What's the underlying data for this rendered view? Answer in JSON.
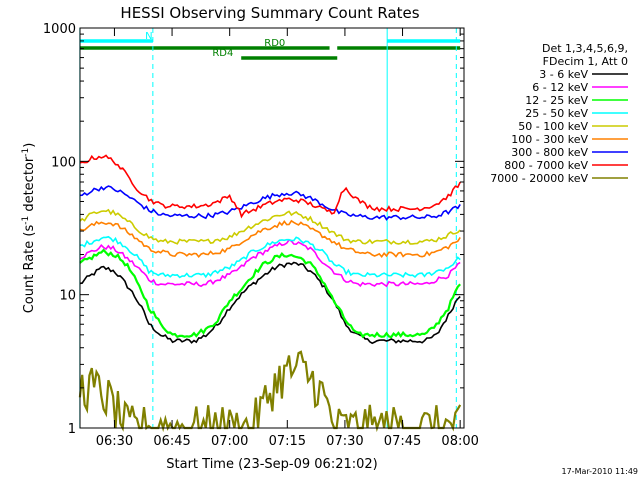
{
  "chart_data": {
    "type": "line",
    "title": "HESSI Observing Summary Count Rates",
    "xlabel": "Start Time (23-Sep-09 06:21:02)",
    "ylabel": "Count Rate (s⁻¹ detector⁻¹)",
    "ylabel_parts": {
      "main": "Count Rate (s",
      "exp1": "-1",
      "mid": " detector",
      "exp2": "-1",
      "end": ")"
    },
    "xlim": [
      "06:21:02",
      "08:01:00"
    ],
    "ylim": [
      1,
      1000
    ],
    "yscale": "log",
    "x_ticks": [
      "06:30",
      "06:45",
      "07:00",
      "07:15",
      "07:30",
      "07:45",
      "08:00"
    ],
    "y_ticks": [
      "1",
      "10",
      "100",
      "1000"
    ],
    "legend_header": [
      "Det 1,3,4,5,6,9,",
      "FDecim 1, Att 0"
    ],
    "legend_position": "right",
    "series_x": [
      "06:21",
      "06:24",
      "06:27",
      "06:30",
      "06:33",
      "06:36",
      "06:39",
      "06:42",
      "06:45",
      "06:48",
      "06:51",
      "06:54",
      "06:57",
      "07:00",
      "07:03",
      "07:06",
      "07:09",
      "07:12",
      "07:15",
      "07:18",
      "07:21",
      "07:24",
      "07:27",
      "07:30",
      "07:33",
      "07:36",
      "07:39",
      "07:42",
      "07:45",
      "07:48",
      "07:51",
      "07:54",
      "07:57",
      "08:00"
    ],
    "series": [
      {
        "name": "3 - 6 keV",
        "color": "#000000",
        "values": [
          12,
          14,
          16,
          15,
          12,
          9,
          6,
          5,
          4.5,
          4.5,
          4.5,
          5,
          6,
          8,
          10,
          12,
          14,
          16,
          17,
          17,
          15,
          12,
          9,
          6,
          5,
          4.5,
          4.5,
          4.5,
          4.5,
          4.5,
          4.5,
          5,
          7,
          10
        ]
      },
      {
        "name": "6 - 12 keV",
        "color": "#ff00ff",
        "values": [
          19,
          21,
          23,
          22,
          19,
          16,
          13,
          12,
          12,
          12,
          12,
          12,
          13,
          14,
          16,
          19,
          21,
          23,
          25,
          24,
          22,
          18,
          15,
          13,
          12,
          12,
          12,
          12,
          12,
          12,
          12,
          13,
          14,
          17
        ]
      },
      {
        "name": "12 - 25 keV",
        "color": "#00ff00",
        "values": [
          17,
          19,
          21,
          20,
          17,
          12,
          8,
          6,
          5,
          5,
          5,
          5.5,
          6.5,
          9,
          11,
          14,
          17,
          19,
          20,
          19,
          17,
          13,
          9,
          6.5,
          5,
          5,
          5,
          5,
          5,
          5,
          5,
          6,
          8,
          12
        ]
      },
      {
        "name": "25 - 50 keV",
        "color": "#00ffff",
        "values": [
          23,
          25,
          27,
          26,
          23,
          19,
          15,
          14,
          14,
          14,
          14,
          14,
          15,
          16,
          18,
          21,
          23,
          25,
          26,
          26,
          24,
          21,
          17,
          15,
          14,
          14,
          14,
          14,
          14,
          14,
          14,
          15,
          16,
          19
        ]
      },
      {
        "name": "50 - 100 keV",
        "color": "#cccc00",
        "values": [
          35,
          40,
          43,
          41,
          36,
          31,
          27,
          25,
          25,
          25,
          25,
          25,
          26,
          27,
          30,
          33,
          36,
          39,
          41,
          40,
          37,
          33,
          29,
          26,
          25,
          25,
          25,
          25,
          25,
          25,
          25,
          26,
          28,
          31
        ]
      },
      {
        "name": "100 - 300 keV",
        "color": "#ff8000",
        "values": [
          30,
          33,
          35,
          34,
          30,
          26,
          22,
          21,
          20,
          20,
          20,
          20,
          21,
          22,
          25,
          28,
          31,
          33,
          35,
          34,
          31,
          28,
          25,
          22,
          21,
          20,
          20,
          20,
          20,
          20,
          20,
          21,
          23,
          26
        ]
      },
      {
        "name": "300 - 800 keV",
        "color": "#0000ff",
        "values": [
          55,
          60,
          64,
          62,
          56,
          49,
          43,
          40,
          39,
          39,
          39,
          39,
          40,
          42,
          45,
          49,
          53,
          56,
          58,
          57,
          53,
          48,
          43,
          40,
          39,
          38,
          38,
          38,
          38,
          38,
          38,
          39,
          42,
          46
        ]
      },
      {
        "name": "800 - 7000 keV",
        "color": "#ff0000",
        "values": [
          95,
          105,
          110,
          100,
          80,
          62,
          52,
          47,
          46,
          46,
          46,
          47,
          50,
          55,
          40,
          43,
          47,
          50,
          52,
          51,
          48,
          44,
          41,
          64,
          52,
          46,
          44,
          44,
          44,
          44,
          45,
          48,
          55,
          68
        ]
      },
      {
        "name": "7000 - 20000 keV",
        "color": "#808000",
        "values": [
          2,
          2,
          1.8,
          1.4,
          1,
          1,
          1,
          1,
          1,
          1,
          1,
          1,
          1,
          1,
          1,
          1,
          1.5,
          2.2,
          2.6,
          2.8,
          2.4,
          1.8,
          1,
          1,
          1,
          1,
          1,
          1,
          1,
          1,
          1,
          1,
          1,
          1
        ]
      }
    ],
    "flags": [
      {
        "label": "N",
        "color": "#00ffff",
        "segments": [
          [
            "06:21",
            "06:40"
          ],
          [
            "07:41",
            "08:00"
          ]
        ]
      },
      {
        "label": "RD0",
        "color": "#008000",
        "segments": [
          [
            "06:21",
            "07:26"
          ],
          [
            "07:28",
            "08:00"
          ]
        ]
      },
      {
        "label": "RD4",
        "color": "#008000",
        "segments": [
          [
            "07:03",
            "07:28"
          ]
        ]
      }
    ],
    "vertical_markers": [
      {
        "color": "#00ffff",
        "style": "solid",
        "x": "06:21"
      },
      {
        "color": "#00ffff",
        "style": "dashed",
        "x": "06:40"
      },
      {
        "color": "#00ffff",
        "style": "solid",
        "x": "07:41"
      },
      {
        "color": "#00ffff",
        "style": "dashed",
        "x": "07:59"
      }
    ],
    "grid": false
  },
  "timestamp": "17-Mar-2010 11:49"
}
